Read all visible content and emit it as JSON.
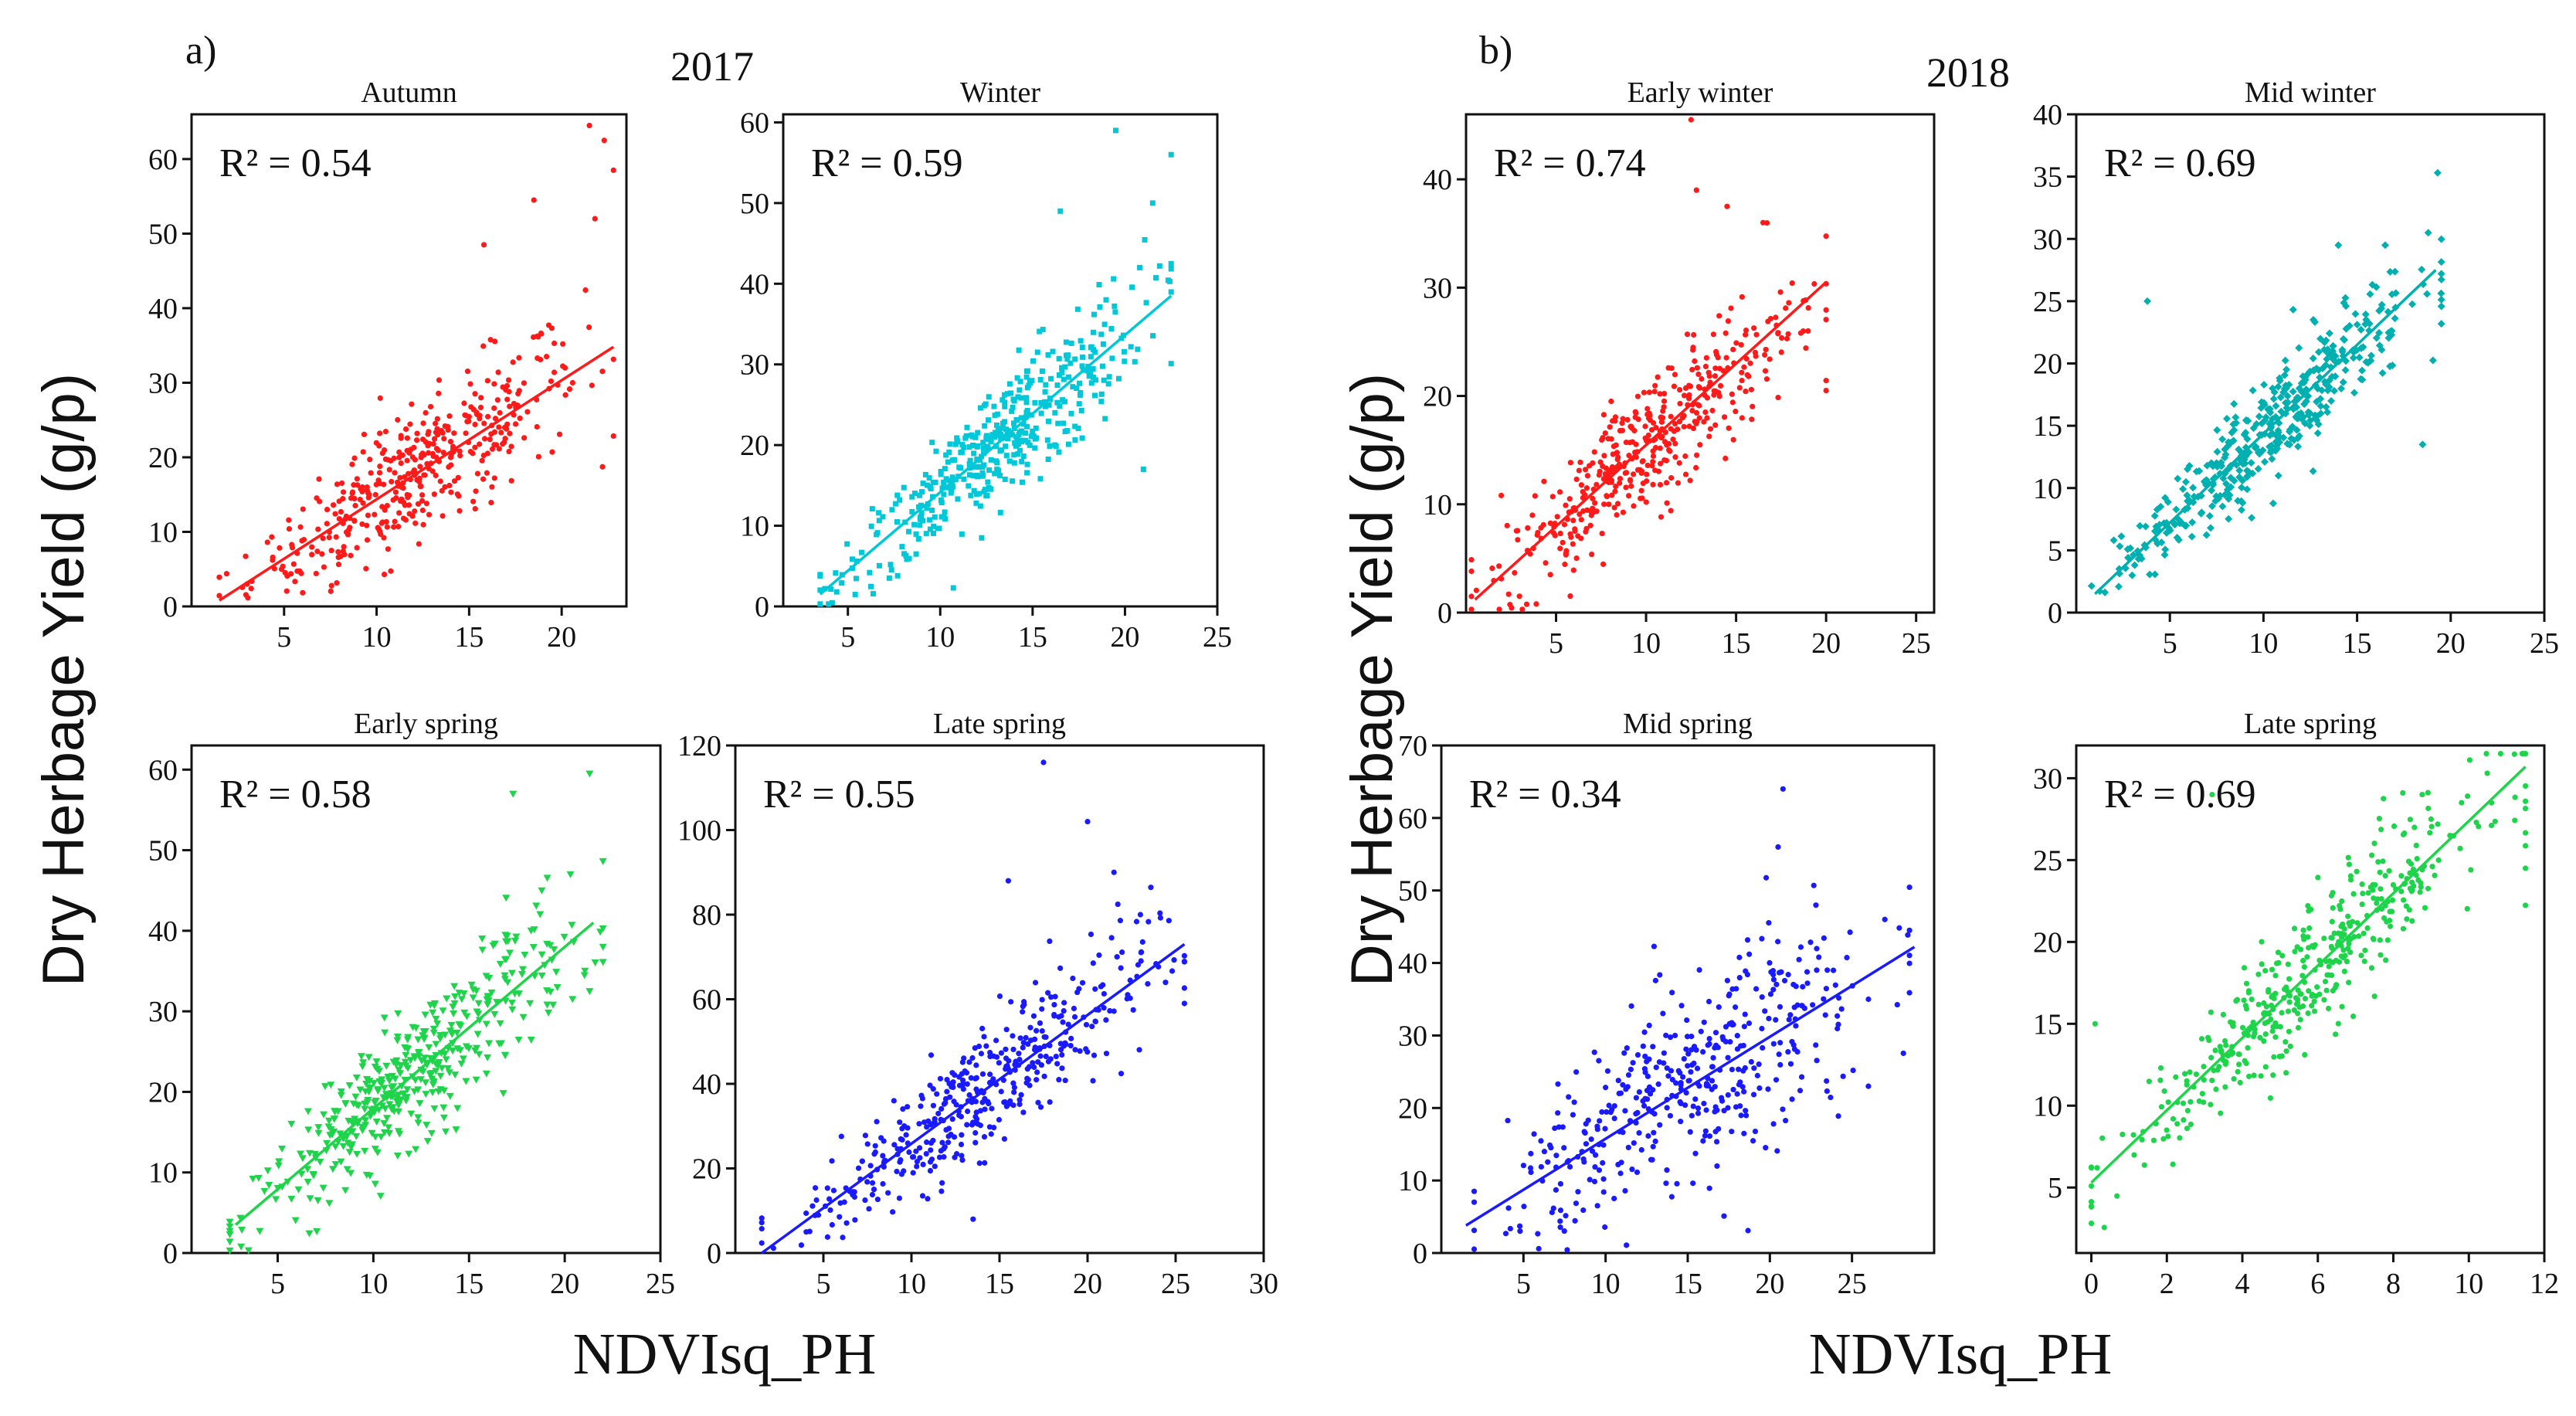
{
  "figure": {
    "groups": [
      {
        "letter": "a)",
        "year": "2017",
        "ylabel": "Dry Herbage Yield (g/p)",
        "xlabel": "NDVIsq_PH"
      },
      {
        "letter": "b)",
        "year": "2018",
        "ylabel": "Dry Herbage Yield (g/p)",
        "xlabel": "NDVIsq_PH"
      }
    ]
  },
  "chart_data": [
    {
      "type": "scatter",
      "group": "2017",
      "title": "Autumn",
      "r2_text": "R² = 0.54",
      "color": "#ff1a1a",
      "marker": "circle",
      "xlim": [
        0,
        23.5
      ],
      "ylim": [
        0,
        66
      ],
      "xticks": [
        5,
        10,
        15,
        20
      ],
      "yticks": [
        0,
        10,
        20,
        30,
        40,
        50,
        60
      ],
      "fit": {
        "x": [
          1.5,
          22.8
        ],
        "y": [
          0.8,
          34.8
        ]
      },
      "n": 420,
      "spread": 6.0,
      "xrange": [
        1.5,
        22.8
      ],
      "extra_points": [
        [
          21.5,
          64.5
        ],
        [
          22.3,
          62.5
        ],
        [
          22.8,
          58.5
        ],
        [
          18.5,
          54.5
        ],
        [
          21.8,
          52
        ],
        [
          15.8,
          48.5
        ]
      ]
    },
    {
      "type": "scatter",
      "group": "2017",
      "title": "Winter",
      "r2_text": "R² = 0.59",
      "color": "#00c8d8",
      "marker": "square",
      "xlim": [
        1.5,
        25
      ],
      "ylim": [
        0,
        61
      ],
      "xticks": [
        5,
        10,
        15,
        20,
        25
      ],
      "yticks": [
        0,
        10,
        20,
        30,
        40,
        50,
        60
      ],
      "fit": {
        "x": [
          3.5,
          22.5
        ],
        "y": [
          1.5,
          38.5
        ]
      },
      "n": 430,
      "spread": 5.0,
      "xrange": [
        3.5,
        22.5
      ],
      "extra_points": [
        [
          19.5,
          59
        ],
        [
          22.5,
          56
        ],
        [
          21.5,
          50
        ],
        [
          16.5,
          49
        ],
        [
          20.8,
          42
        ],
        [
          21,
          17
        ]
      ]
    },
    {
      "type": "scatter",
      "group": "2017",
      "title": "Early spring",
      "r2_text": "R² = 0.58",
      "color": "#1ed44a",
      "marker": "triangle",
      "xlim": [
        0.5,
        25
      ],
      "ylim": [
        0,
        63
      ],
      "xticks": [
        5,
        10,
        15,
        20,
        25
      ],
      "yticks": [
        0,
        10,
        20,
        30,
        40,
        50,
        60
      ],
      "fit": {
        "x": [
          2.8,
          21.5
        ],
        "y": [
          3.5,
          41
        ]
      },
      "n": 430,
      "spread": 5.5,
      "xrange": [
        2.5,
        22
      ],
      "extra_points": [
        [
          21.3,
          59.5
        ],
        [
          17.3,
          57
        ],
        [
          20.3,
          47
        ],
        [
          18.8,
          45
        ],
        [
          21.3,
          32.5
        ]
      ]
    },
    {
      "type": "scatter",
      "group": "2017",
      "title": "Late spring",
      "r2_text": "R² = 0.55",
      "color": "#1a1aff",
      "marker": "circle",
      "xlim": [
        0,
        30
      ],
      "ylim": [
        0,
        120
      ],
      "xticks": [
        5,
        10,
        15,
        20,
        25,
        30
      ],
      "yticks": [
        0,
        20,
        40,
        60,
        80,
        100,
        120
      ],
      "fit": {
        "x": [
          1.5,
          25.5
        ],
        "y": [
          0,
          73
        ]
      },
      "n": 430,
      "spread": 10.0,
      "xrange": [
        1.5,
        25.5
      ],
      "extra_points": [
        [
          17.5,
          116
        ],
        [
          20,
          102
        ],
        [
          21.5,
          90
        ],
        [
          23,
          80
        ],
        [
          15.5,
          88
        ],
        [
          25.5,
          59
        ],
        [
          13.5,
          8
        ]
      ]
    },
    {
      "type": "scatter",
      "group": "2018",
      "title": "Early winter",
      "r2_text": "R² = 0.74",
      "color": "#ff1a1a",
      "marker": "circle",
      "xlim": [
        0,
        26
      ],
      "ylim": [
        0,
        46
      ],
      "xticks": [
        5,
        10,
        15,
        20,
        25
      ],
      "yticks": [
        0,
        10,
        20,
        30,
        40
      ],
      "fit": {
        "x": [
          0.5,
          20
        ],
        "y": [
          1.2,
          30.5
        ]
      },
      "n": 420,
      "spread": 4.2,
      "xrange": [
        0.3,
        20
      ],
      "extra_points": [
        [
          12.5,
          45.5
        ],
        [
          12.8,
          39
        ],
        [
          14.5,
          37.5
        ],
        [
          16.5,
          36
        ],
        [
          19,
          26
        ],
        [
          20,
          20.5
        ]
      ]
    },
    {
      "type": "scatter",
      "group": "2018",
      "title": "Mid winter",
      "r2_text": "R² = 0.69",
      "color": "#00b0b0",
      "marker": "diamond",
      "xlim": [
        0,
        25
      ],
      "ylim": [
        0,
        40
      ],
      "xticks": [
        5,
        10,
        15,
        20,
        25
      ],
      "yticks": [
        0,
        5,
        10,
        15,
        20,
        25,
        30,
        35,
        40
      ],
      "fit": {
        "x": [
          1,
          19.2
        ],
        "y": [
          1.5,
          27.5
        ]
      },
      "n": 430,
      "spread": 2.8,
      "xrange": [
        0.8,
        19.5
      ],
      "extra_points": [
        [
          19.3,
          35.3
        ],
        [
          18.8,
          30.5
        ],
        [
          16.5,
          29.5
        ],
        [
          3.8,
          25
        ],
        [
          18.5,
          13.5
        ],
        [
          14,
          29.5
        ]
      ]
    },
    {
      "type": "scatter",
      "group": "2018",
      "title": "Mid spring",
      "r2_text": "R² = 0.34",
      "color": "#1a1aff",
      "marker": "circle",
      "xlim": [
        0,
        30
      ],
      "ylim": [
        0,
        70
      ],
      "xticks": [
        5,
        10,
        15,
        20,
        25
      ],
      "yticks": [
        0,
        10,
        20,
        30,
        40,
        50,
        60,
        70
      ],
      "fit": {
        "x": [
          1.5,
          28.8
        ],
        "y": [
          3.8,
          42.2
        ]
      },
      "n": 420,
      "spread": 10.0,
      "xrange": [
        2,
        28.5
      ],
      "extra_points": [
        [
          20.8,
          64
        ],
        [
          20.5,
          56
        ],
        [
          27,
          46
        ],
        [
          28.5,
          44.5
        ],
        [
          26,
          35
        ],
        [
          26,
          23
        ]
      ]
    },
    {
      "type": "scatter",
      "group": "2018",
      "title": "Late spring",
      "r2_text": "R² = 0.69",
      "color": "#1ed44a",
      "marker": "circle",
      "xlim": [
        -0.4,
        12
      ],
      "ylim": [
        1,
        32
      ],
      "xticks": [
        0,
        2,
        4,
        6,
        8,
        10,
        12
      ],
      "yticks": [
        5,
        10,
        15,
        20,
        25,
        30
      ],
      "fit": {
        "x": [
          0,
          11.5
        ],
        "y": [
          5.3,
          30.7
        ]
      },
      "n": 420,
      "spread": 2.8,
      "xrange": [
        0,
        11.5
      ],
      "extra_points": [
        [
          9,
          27.5
        ],
        [
          9.5,
          26.5
        ],
        [
          10.2,
          27.3
        ],
        [
          10.6,
          28.5
        ],
        [
          11.5,
          24.5
        ],
        [
          3.2,
          29
        ],
        [
          0.1,
          15
        ]
      ]
    }
  ]
}
